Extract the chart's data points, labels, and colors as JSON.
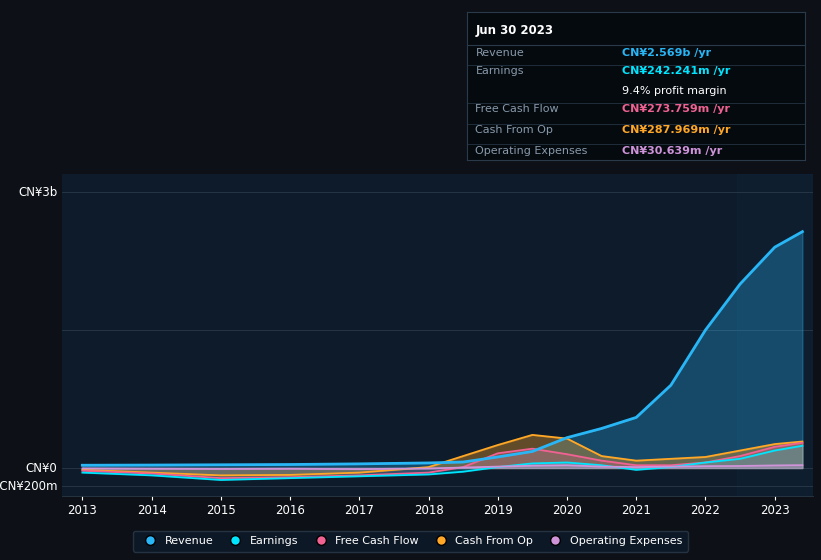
{
  "bg_color": "#0d1117",
  "plot_bg_color": "#0d1b2a",
  "grid_color": "#2a3a4a",
  "years": [
    2013,
    2014,
    2015,
    2016,
    2017,
    2018,
    2018.5,
    2019,
    2019.5,
    2020,
    2020.5,
    2021,
    2021.5,
    2022,
    2022.5,
    2023,
    2023.4
  ],
  "revenue": [
    30,
    32,
    35,
    38,
    45,
    55,
    65,
    120,
    180,
    330,
    430,
    550,
    900,
    1500,
    2000,
    2400,
    2569
  ],
  "earnings": [
    -50,
    -80,
    -130,
    -110,
    -90,
    -70,
    -40,
    10,
    50,
    60,
    30,
    -20,
    10,
    60,
    100,
    190,
    242
  ],
  "free_cash_flow": [
    -30,
    -60,
    -110,
    -100,
    -80,
    -50,
    10,
    160,
    210,
    150,
    80,
    30,
    30,
    60,
    130,
    230,
    274
  ],
  "cash_from_op": [
    -20,
    -50,
    -80,
    -75,
    -50,
    10,
    130,
    250,
    360,
    320,
    130,
    80,
    100,
    120,
    190,
    260,
    288
  ],
  "operating_expenses": [
    -5,
    -8,
    -10,
    -8,
    -12,
    -5,
    5,
    15,
    25,
    30,
    15,
    10,
    15,
    20,
    22,
    28,
    31
  ],
  "revenue_color": "#29b6f6",
  "earnings_color": "#00e5ff",
  "free_cash_flow_color": "#f06292",
  "cash_from_op_color": "#ffa726",
  "operating_expenses_color": "#ce93d8",
  "ylabel_3b": "CN¥3b",
  "ylabel_0": "CN¥0",
  "ylabel_neg200m": "-CN¥200m",
  "x_ticks": [
    2013,
    2014,
    2015,
    2016,
    2017,
    2018,
    2019,
    2020,
    2021,
    2022,
    2023
  ],
  "tooltip_title": "Jun 30 2023",
  "tooltip_revenue_label": "Revenue",
  "tooltip_revenue_value": "CN¥2.569b /yr",
  "tooltip_earnings_label": "Earnings",
  "tooltip_earnings_value": "CN¥242.241m /yr",
  "tooltip_margin": "9.4% profit margin",
  "tooltip_fcf_label": "Free Cash Flow",
  "tooltip_fcf_value": "CN¥273.759m /yr",
  "tooltip_cfop_label": "Cash From Op",
  "tooltip_cfop_value": "CN¥287.969m /yr",
  "tooltip_opex_label": "Operating Expenses",
  "tooltip_opex_value": "CN¥30.639m /yr",
  "legend_items": [
    "Revenue",
    "Earnings",
    "Free Cash Flow",
    "Cash From Op",
    "Operating Expenses"
  ]
}
